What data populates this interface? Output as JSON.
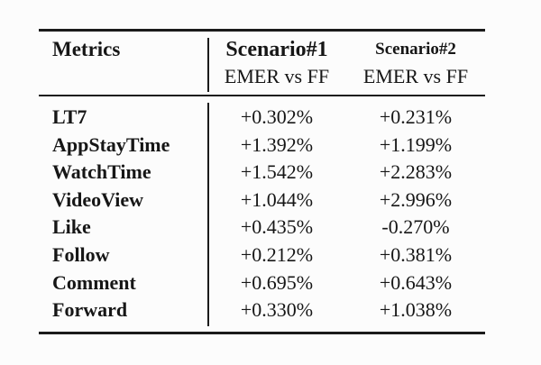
{
  "page": {
    "background_color": "#fcfcfc",
    "text_color": "#161616",
    "rule_color": "#1b1b1b"
  },
  "table": {
    "header": {
      "metrics_label": "Metrics",
      "scenarios": [
        {
          "title": "Scenario#1",
          "subtitle": "EMER vs FF"
        },
        {
          "title": "Scenario#2",
          "subtitle": "EMER vs FF"
        }
      ]
    },
    "rows": [
      {
        "metric": "LT7",
        "values": [
          "+0.302%",
          "+0.231%"
        ]
      },
      {
        "metric": "AppStayTime",
        "values": [
          "+1.392%",
          "+1.199%"
        ]
      },
      {
        "metric": "WatchTime",
        "values": [
          "+1.542%",
          "+2.283%"
        ]
      },
      {
        "metric": "VideoView",
        "values": [
          "+1.044%",
          "+2.996%"
        ]
      },
      {
        "metric": "Like",
        "values": [
          "+0.435%",
          "-0.270%"
        ]
      },
      {
        "metric": "Follow",
        "values": [
          "+0.212%",
          "+0.381%"
        ]
      },
      {
        "metric": "Comment",
        "values": [
          "+0.695%",
          "+0.643%"
        ]
      },
      {
        "metric": "Forward",
        "values": [
          "+0.330%",
          "+1.038%"
        ]
      }
    ]
  },
  "chart_data": {
    "type": "table",
    "title": "",
    "columns": [
      "Metrics",
      "Scenario#1 EMER vs FF",
      "Scenario#2 EMER vs FF"
    ],
    "rows": [
      [
        "LT7",
        "+0.302%",
        "+0.231%"
      ],
      [
        "AppStayTime",
        "+1.392%",
        "+1.199%"
      ],
      [
        "WatchTime",
        "+1.542%",
        "+2.283%"
      ],
      [
        "VideoView",
        "+1.044%",
        "+2.996%"
      ],
      [
        "Like",
        "+0.435%",
        "-0.270%"
      ],
      [
        "Follow",
        "+0.212%",
        "+0.381%"
      ],
      [
        "Comment",
        "+0.695%",
        "+0.643%"
      ],
      [
        "Forward",
        "+0.330%",
        "+1.038%"
      ]
    ]
  }
}
